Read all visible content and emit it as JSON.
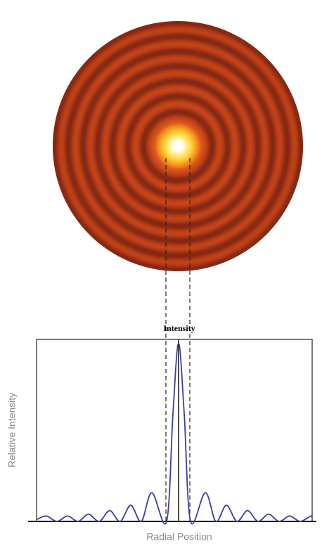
{
  "chart_data": {
    "type": "line",
    "title": "Intensity",
    "x_label": "Radial Position",
    "y_label": "Relative Intensity",
    "x": [
      -10.1,
      -9.4,
      -8.65,
      -7.9,
      -7.15,
      -6.4,
      -5.65,
      -4.9,
      -4.15,
      -3.4,
      -2.65,
      -1.9,
      -0.85,
      -0.4,
      0,
      0.4,
      0.85,
      1.9,
      2.65,
      3.4,
      4.15,
      4.9,
      5.65,
      6.4,
      7.15,
      7.9,
      8.65,
      9.4,
      9.5
    ],
    "values": [
      0.01,
      0.03,
      0,
      0.03,
      0,
      0.04,
      0,
      0.06,
      0,
      0.09,
      0,
      0.16,
      0,
      0.6,
      0.99,
      0.6,
      0,
      0.16,
      0,
      0.09,
      0,
      0.06,
      0,
      0.04,
      0,
      0.03,
      0,
      0.03,
      0.02
    ],
    "color": "#3b3f9c",
    "xlim": [
      -10.1,
      9.5
    ],
    "ylim": [
      0,
      1
    ]
  }
}
